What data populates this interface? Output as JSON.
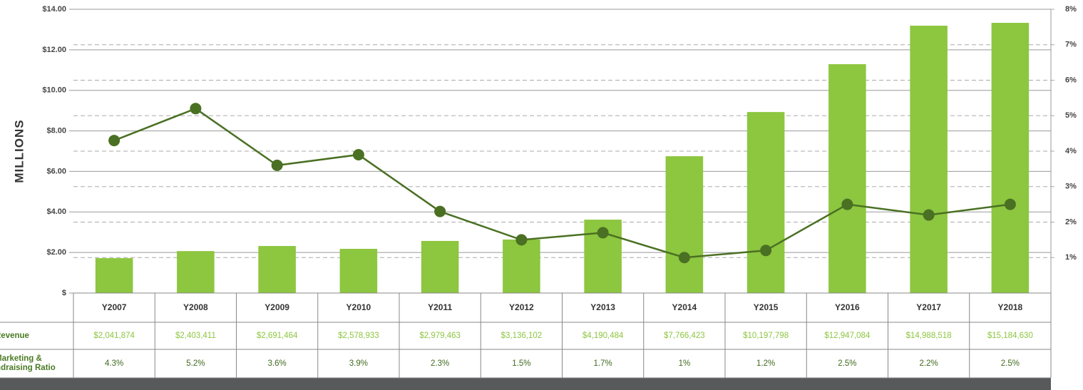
{
  "chart_data": {
    "type": "bar_line",
    "y_label": "MILLIONS",
    "categories": [
      "Y2007",
      "Y2008",
      "Y2009",
      "Y2010",
      "Y2011",
      "Y2012",
      "Y2013",
      "Y2014",
      "Y2015",
      "Y2016",
      "Y2017",
      "Y2018"
    ],
    "series": [
      {
        "name": "Revenue",
        "type": "bar",
        "color": "#8dc63f",
        "values": [
          1.72,
          2.07,
          2.32,
          2.18,
          2.57,
          2.64,
          3.62,
          6.75,
          8.93,
          11.29,
          13.19,
          13.33
        ]
      },
      {
        "name": "Marketing & Fundraising Ratio",
        "type": "line",
        "axis": "y2",
        "color": "#4a7023",
        "values": [
          4.3,
          5.2,
          3.6,
          3.9,
          2.3,
          1.5,
          1.7,
          1,
          1.2,
          2.5,
          2.2,
          2.5
        ],
        "value_labels": [
          "4.3%",
          "5.2%",
          "3.6%",
          "3.9%",
          "2.3%",
          "1.5%",
          "1.7%",
          "1%",
          "1.2%",
          "2.5%",
          "2.2%",
          "2.5%"
        ]
      }
    ],
    "ylim": [
      0,
      14
    ],
    "yticks": [
      {
        "value": 0,
        "label": "$"
      },
      {
        "value": 2,
        "label": "$2.00"
      },
      {
        "value": 4,
        "label": "$4.00"
      },
      {
        "value": 6,
        "label": "$6.00"
      },
      {
        "value": 8,
        "label": "$8.00"
      },
      {
        "value": 10,
        "label": "$10.00"
      },
      {
        "value": 12,
        "label": "$12.00"
      },
      {
        "value": 14,
        "label": "$14.00"
      }
    ],
    "y2lim": [
      0,
      8
    ],
    "y2ticks": [
      {
        "value": 1,
        "label": "1%"
      },
      {
        "value": 2,
        "label": "2%"
      },
      {
        "value": 3,
        "label": "3%"
      },
      {
        "value": 4,
        "label": "4%"
      },
      {
        "value": 5,
        "label": "5%"
      },
      {
        "value": 6,
        "label": "6%"
      },
      {
        "value": 7,
        "label": "7%"
      },
      {
        "value": 8,
        "label": "8%"
      }
    ],
    "grid": true
  },
  "table": {
    "revenue_cells": [
      "$2,041,874",
      "$2,403,411",
      "$2,691,464",
      "$2,578,933",
      "$2,979,463",
      "$3,136,102",
      "$4,190,484",
      "$7,766,423",
      "$10,197,798",
      "$12,947,084",
      "$14,988,518",
      "$15,184,630"
    ]
  }
}
